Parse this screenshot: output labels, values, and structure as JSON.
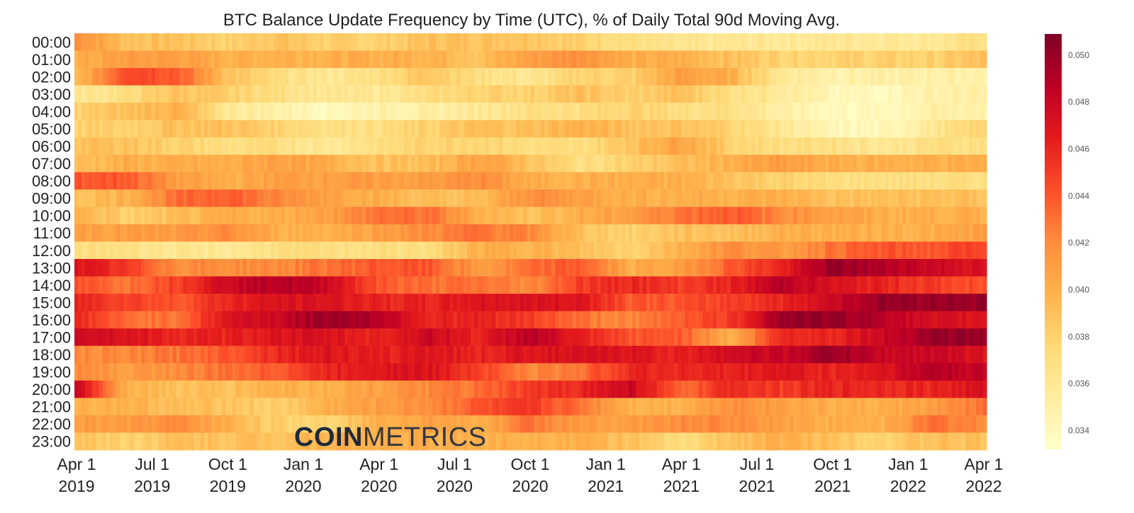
{
  "chart_data": {
    "type": "heatmap",
    "title": "BTC Balance Update Frequency by Time (UTC), % of Daily Total 90d Moving Avg.",
    "rows": [
      "00:00",
      "01:00",
      "02:00",
      "03:00",
      "04:00",
      "05:00",
      "06:00",
      "07:00",
      "08:00",
      "09:00",
      "10:00",
      "11:00",
      "12:00",
      "13:00",
      "14:00",
      "15:00",
      "16:00",
      "17:00",
      "18:00",
      "19:00",
      "20:00",
      "21:00",
      "22:00",
      "23:00"
    ],
    "columns": [
      "2019-04",
      "2019-06",
      "2019-08",
      "2019-10",
      "2019-12",
      "2020-02",
      "2020-04",
      "2020-06",
      "2020-08",
      "2020-10",
      "2020-12",
      "2021-02",
      "2021-04",
      "2021-06",
      "2021-08",
      "2021-10",
      "2021-12",
      "2022-02",
      "2022-04"
    ],
    "values": [
      [
        0.042,
        0.039,
        0.039,
        0.038,
        0.039,
        0.038,
        0.038,
        0.039,
        0.039,
        0.039,
        0.038,
        0.037,
        0.036,
        0.036,
        0.036,
        0.036,
        0.036,
        0.036,
        0.037
      ],
      [
        0.04,
        0.041,
        0.041,
        0.04,
        0.04,
        0.04,
        0.04,
        0.04,
        0.039,
        0.041,
        0.042,
        0.04,
        0.04,
        0.039,
        0.038,
        0.038,
        0.038,
        0.038,
        0.039
      ],
      [
        0.039,
        0.045,
        0.044,
        0.039,
        0.037,
        0.036,
        0.037,
        0.039,
        0.037,
        0.036,
        0.038,
        0.038,
        0.041,
        0.04,
        0.036,
        0.035,
        0.035,
        0.035,
        0.035
      ],
      [
        0.036,
        0.037,
        0.039,
        0.038,
        0.037,
        0.036,
        0.036,
        0.037,
        0.038,
        0.038,
        0.039,
        0.038,
        0.039,
        0.037,
        0.036,
        0.034,
        0.034,
        0.035,
        0.035
      ],
      [
        0.038,
        0.039,
        0.04,
        0.036,
        0.035,
        0.034,
        0.035,
        0.035,
        0.036,
        0.037,
        0.037,
        0.038,
        0.037,
        0.037,
        0.035,
        0.034,
        0.034,
        0.035,
        0.035
      ],
      [
        0.038,
        0.038,
        0.039,
        0.039,
        0.038,
        0.037,
        0.037,
        0.038,
        0.039,
        0.039,
        0.04,
        0.039,
        0.039,
        0.038,
        0.036,
        0.034,
        0.034,
        0.036,
        0.038
      ],
      [
        0.039,
        0.039,
        0.038,
        0.037,
        0.037,
        0.036,
        0.037,
        0.038,
        0.038,
        0.037,
        0.037,
        0.039,
        0.041,
        0.038,
        0.037,
        0.037,
        0.036,
        0.037,
        0.037
      ],
      [
        0.039,
        0.04,
        0.04,
        0.04,
        0.041,
        0.04,
        0.039,
        0.039,
        0.041,
        0.039,
        0.037,
        0.038,
        0.039,
        0.04,
        0.041,
        0.04,
        0.04,
        0.04,
        0.04
      ],
      [
        0.044,
        0.044,
        0.041,
        0.04,
        0.041,
        0.041,
        0.041,
        0.041,
        0.042,
        0.04,
        0.04,
        0.04,
        0.04,
        0.039,
        0.038,
        0.037,
        0.037,
        0.037,
        0.037
      ],
      [
        0.039,
        0.04,
        0.043,
        0.044,
        0.042,
        0.041,
        0.04,
        0.039,
        0.039,
        0.042,
        0.041,
        0.04,
        0.04,
        0.04,
        0.04,
        0.039,
        0.039,
        0.039,
        0.039
      ],
      [
        0.04,
        0.038,
        0.039,
        0.04,
        0.04,
        0.041,
        0.043,
        0.043,
        0.04,
        0.039,
        0.04,
        0.041,
        0.043,
        0.044,
        0.042,
        0.041,
        0.04,
        0.04,
        0.04
      ],
      [
        0.041,
        0.041,
        0.041,
        0.042,
        0.04,
        0.04,
        0.041,
        0.042,
        0.043,
        0.042,
        0.039,
        0.038,
        0.039,
        0.039,
        0.04,
        0.04,
        0.04,
        0.04,
        0.041
      ],
      [
        0.037,
        0.037,
        0.036,
        0.036,
        0.037,
        0.037,
        0.037,
        0.037,
        0.04,
        0.04,
        0.039,
        0.038,
        0.04,
        0.042,
        0.041,
        0.043,
        0.044,
        0.044,
        0.045
      ],
      [
        0.047,
        0.045,
        0.042,
        0.042,
        0.042,
        0.043,
        0.044,
        0.044,
        0.041,
        0.043,
        0.044,
        0.04,
        0.041,
        0.044,
        0.046,
        0.05,
        0.049,
        0.048,
        0.047
      ],
      [
        0.044,
        0.043,
        0.045,
        0.048,
        0.049,
        0.048,
        0.044,
        0.043,
        0.043,
        0.042,
        0.045,
        0.046,
        0.045,
        0.046,
        0.049,
        0.047,
        0.046,
        0.045,
        0.044
      ],
      [
        0.046,
        0.045,
        0.044,
        0.046,
        0.047,
        0.047,
        0.046,
        0.046,
        0.047,
        0.047,
        0.047,
        0.044,
        0.044,
        0.045,
        0.046,
        0.048,
        0.05,
        0.05,
        0.05
      ],
      [
        0.046,
        0.043,
        0.043,
        0.047,
        0.048,
        0.05,
        0.049,
        0.046,
        0.046,
        0.045,
        0.043,
        0.042,
        0.044,
        0.045,
        0.05,
        0.05,
        0.049,
        0.047,
        0.047
      ],
      [
        0.048,
        0.047,
        0.046,
        0.046,
        0.047,
        0.047,
        0.046,
        0.048,
        0.046,
        0.049,
        0.046,
        0.044,
        0.044,
        0.04,
        0.046,
        0.046,
        0.048,
        0.05,
        0.05
      ],
      [
        0.042,
        0.042,
        0.043,
        0.044,
        0.046,
        0.047,
        0.046,
        0.047,
        0.046,
        0.047,
        0.047,
        0.047,
        0.046,
        0.048,
        0.048,
        0.05,
        0.048,
        0.048,
        0.047
      ],
      [
        0.042,
        0.041,
        0.042,
        0.043,
        0.044,
        0.046,
        0.047,
        0.047,
        0.045,
        0.042,
        0.043,
        0.046,
        0.046,
        0.046,
        0.047,
        0.046,
        0.047,
        0.049,
        0.048
      ],
      [
        0.048,
        0.04,
        0.039,
        0.039,
        0.04,
        0.04,
        0.041,
        0.042,
        0.043,
        0.045,
        0.046,
        0.048,
        0.043,
        0.046,
        0.045,
        0.046,
        0.046,
        0.046,
        0.047
      ],
      [
        0.04,
        0.04,
        0.039,
        0.039,
        0.038,
        0.04,
        0.041,
        0.042,
        0.044,
        0.045,
        0.043,
        0.04,
        0.04,
        0.042,
        0.041,
        0.04,
        0.04,
        0.041,
        0.043
      ],
      [
        0.041,
        0.041,
        0.042,
        0.04,
        0.038,
        0.038,
        0.04,
        0.041,
        0.04,
        0.043,
        0.041,
        0.041,
        0.042,
        0.042,
        0.041,
        0.04,
        0.04,
        0.043,
        0.042
      ],
      [
        0.039,
        0.038,
        0.039,
        0.039,
        0.039,
        0.04,
        0.04,
        0.04,
        0.04,
        0.04,
        0.04,
        0.039,
        0.037,
        0.039,
        0.04,
        0.039,
        0.038,
        0.039,
        0.039
      ]
    ],
    "x_ticks": [
      {
        "month": "Apr 1",
        "year": "2019"
      },
      {
        "month": "Jul 1",
        "year": "2019"
      },
      {
        "month": "Oct 1",
        "year": "2019"
      },
      {
        "month": "Jan 1",
        "year": "2020"
      },
      {
        "month": "Apr 1",
        "year": "2020"
      },
      {
        "month": "Jul 1",
        "year": "2020"
      },
      {
        "month": "Oct 1",
        "year": "2020"
      },
      {
        "month": "Jan 1",
        "year": "2021"
      },
      {
        "month": "Apr 1",
        "year": "2021"
      },
      {
        "month": "Jul 1",
        "year": "2021"
      },
      {
        "month": "Oct 1",
        "year": "2021"
      },
      {
        "month": "Jan 1",
        "year": "2022"
      },
      {
        "month": "Apr 1",
        "year": "2022"
      }
    ],
    "colorbar": {
      "colormap": "YlOrRd",
      "range": [
        0.0332,
        0.0509
      ],
      "ticks": [
        "0.034",
        "0.036",
        "0.038",
        "0.040",
        "0.042",
        "0.044",
        "0.046",
        "0.048",
        "0.050"
      ]
    },
    "grid": false
  },
  "watermark": {
    "bold": "COIN",
    "light": "METRICS",
    "color": "#1f2a3c"
  }
}
